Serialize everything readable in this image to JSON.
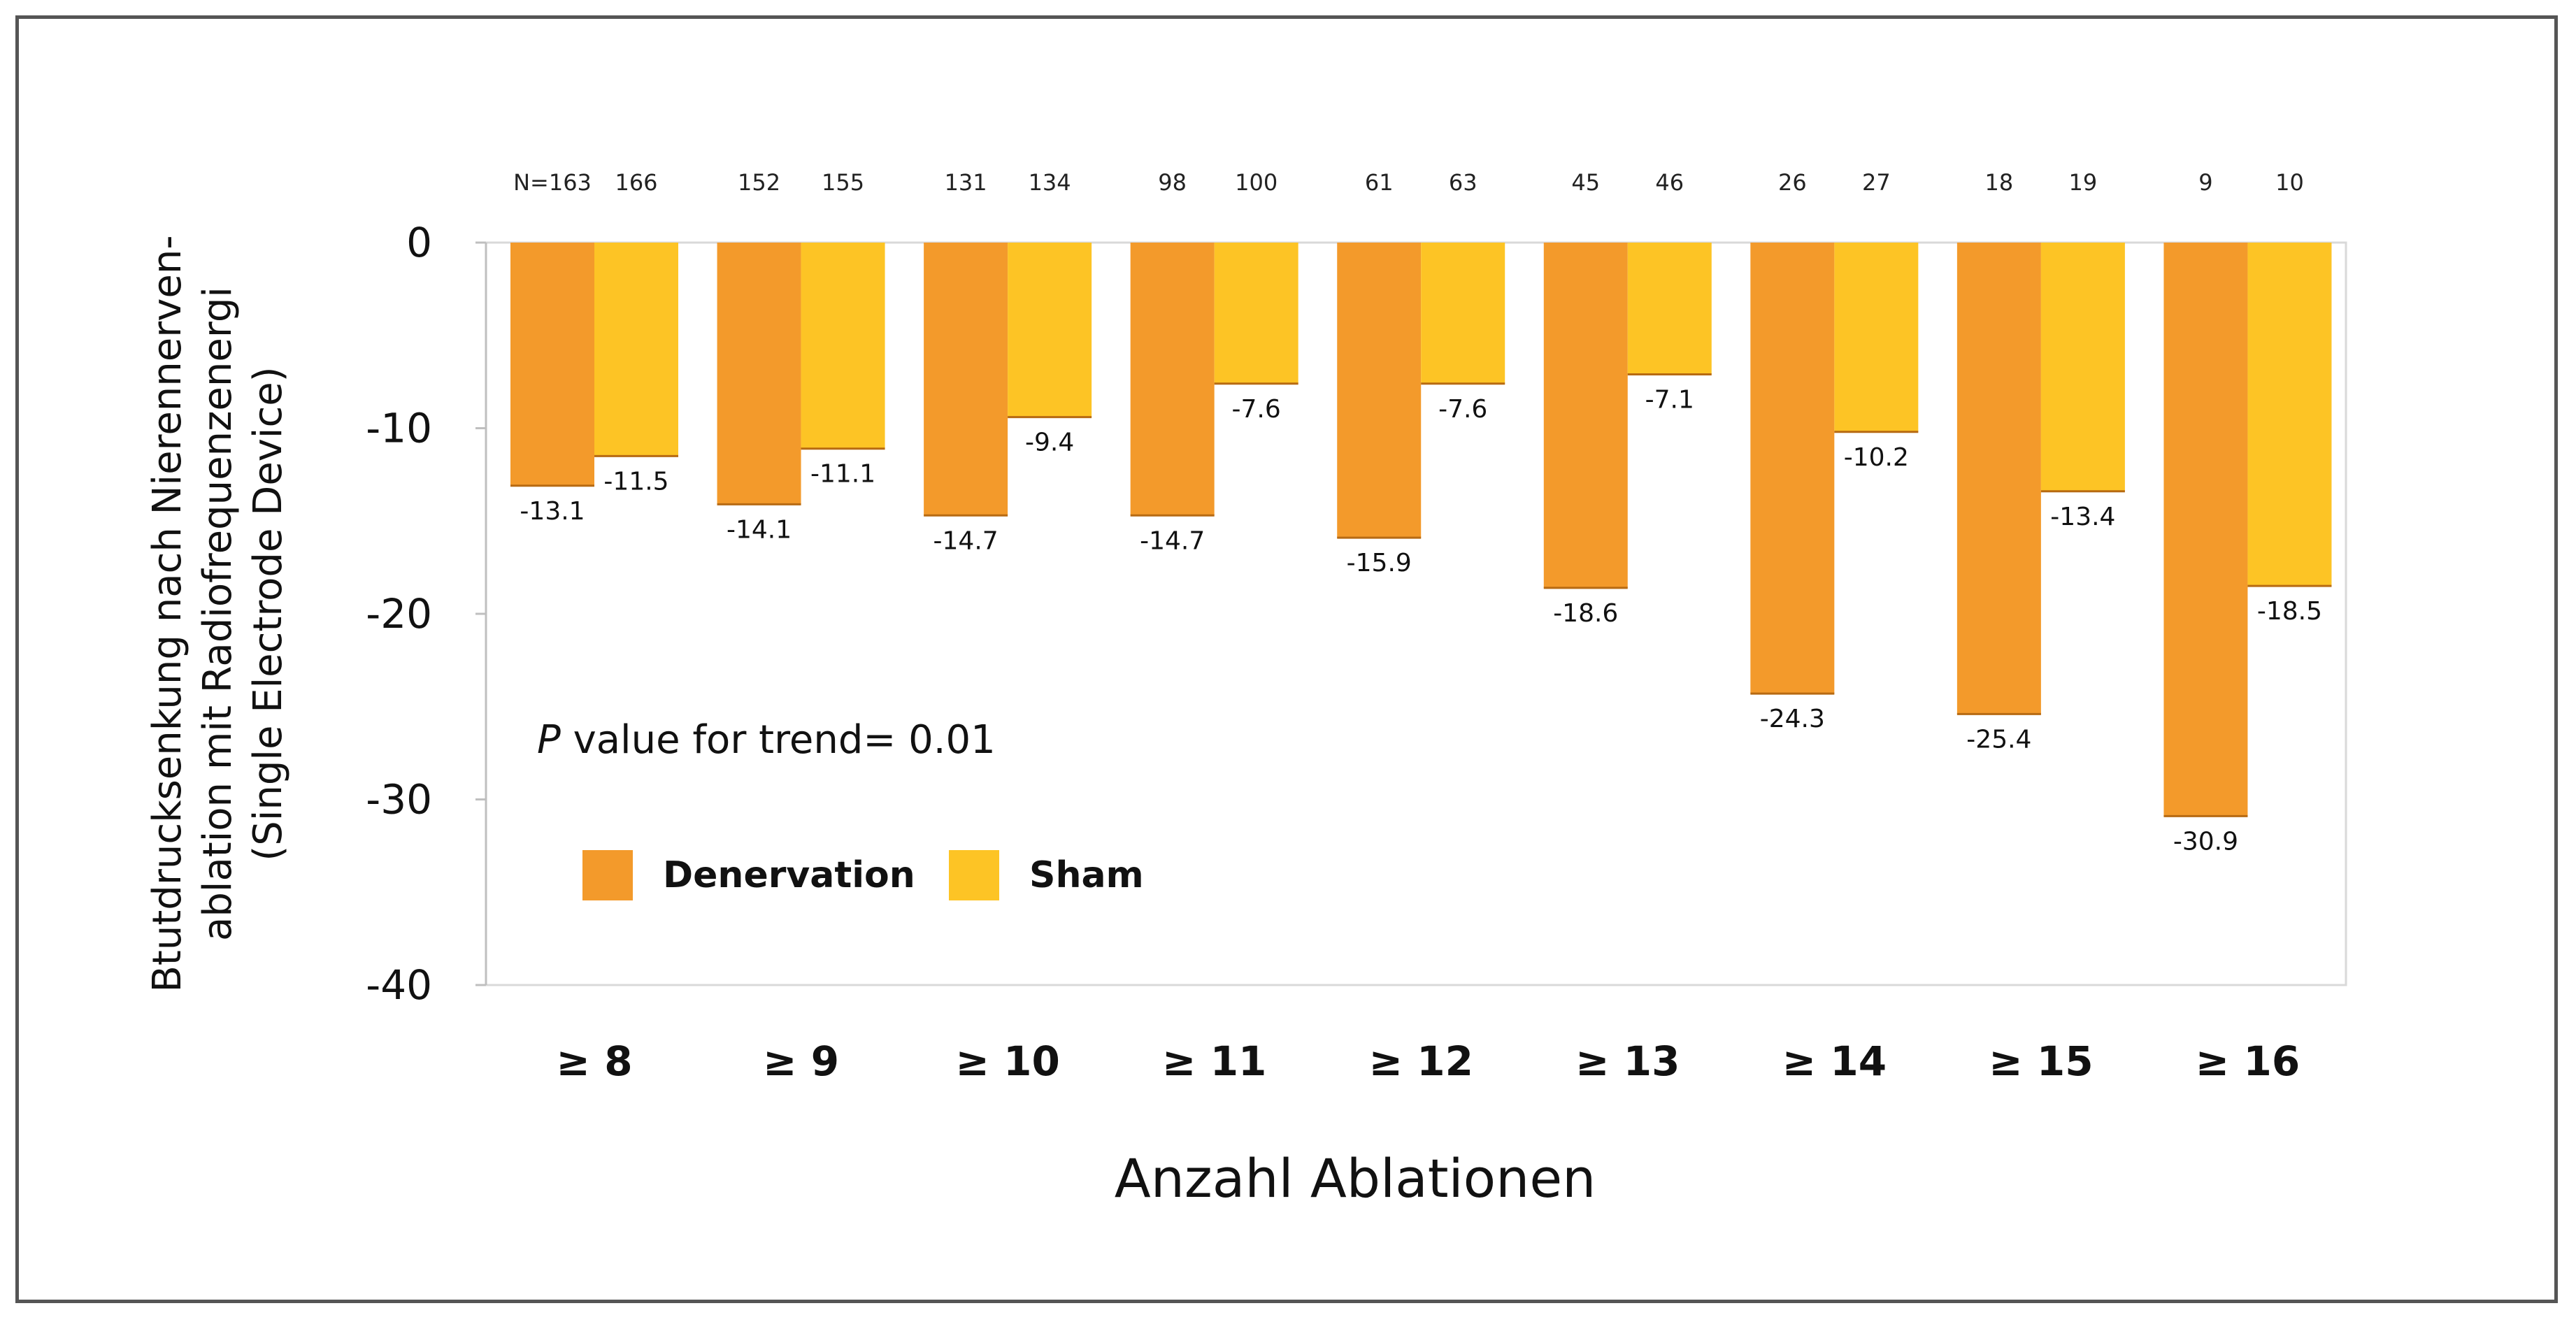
{
  "chart_data": {
    "type": "bar",
    "title": "",
    "xlabel": "Anzahl Ablationen",
    "ylabel_lines": [
      "Btutdrucksenkung  nach Nierennerven-",
      "ablation mit Radiofrequenzenergi",
      "(Single Electrode Device)"
    ],
    "ylim": [
      -40,
      0
    ],
    "yticks": [
      0,
      -10,
      -20,
      -30,
      -40
    ],
    "ytick_labels": [
      "0",
      "-10",
      "-20",
      "-30",
      "-40"
    ],
    "categories": [
      "≥ 8",
      "≥ 9",
      "≥ 10",
      "≥ 11",
      "≥ 12",
      "≥ 13",
      "≥ 14",
      "≥ 15",
      "≥ 16"
    ],
    "series": [
      {
        "name": "Denervation",
        "color": "#F39A2B",
        "values": [
          -13.1,
          -14.1,
          -14.7,
          -14.7,
          -15.9,
          -18.6,
          -24.3,
          -25.4,
          -30.9
        ],
        "value_labels": [
          "-13.1",
          "-14.1",
          "-14.7",
          "-14.7",
          "-15.9",
          "-18.6",
          "-24.3",
          "-25.4",
          "-30.9"
        ],
        "n_labels": [
          "N=163",
          "152",
          "131",
          "98",
          "61",
          "45",
          "26",
          "18",
          "9"
        ]
      },
      {
        "name": "Sham",
        "color": "#FDC425",
        "values": [
          -11.5,
          -11.1,
          -9.4,
          -7.6,
          -7.6,
          -7.1,
          -10.2,
          -13.4,
          -18.5
        ],
        "value_labels": [
          "-11.5",
          "-11.1",
          "-9.4",
          "-7.6",
          "-7.6",
          "-7.1",
          "-10.2",
          "-13.4",
          "-18.5"
        ],
        "n_labels": [
          "166",
          "155",
          "134",
          "100",
          "63",
          "46",
          "27",
          "19",
          "10"
        ]
      }
    ],
    "annotation": {
      "italic": "P",
      "text": " value for trend= 0.01"
    },
    "legend": {
      "placement": "lower-left inside plot",
      "entries": [
        "Denervation",
        "Sham"
      ]
    },
    "grid": false
  }
}
